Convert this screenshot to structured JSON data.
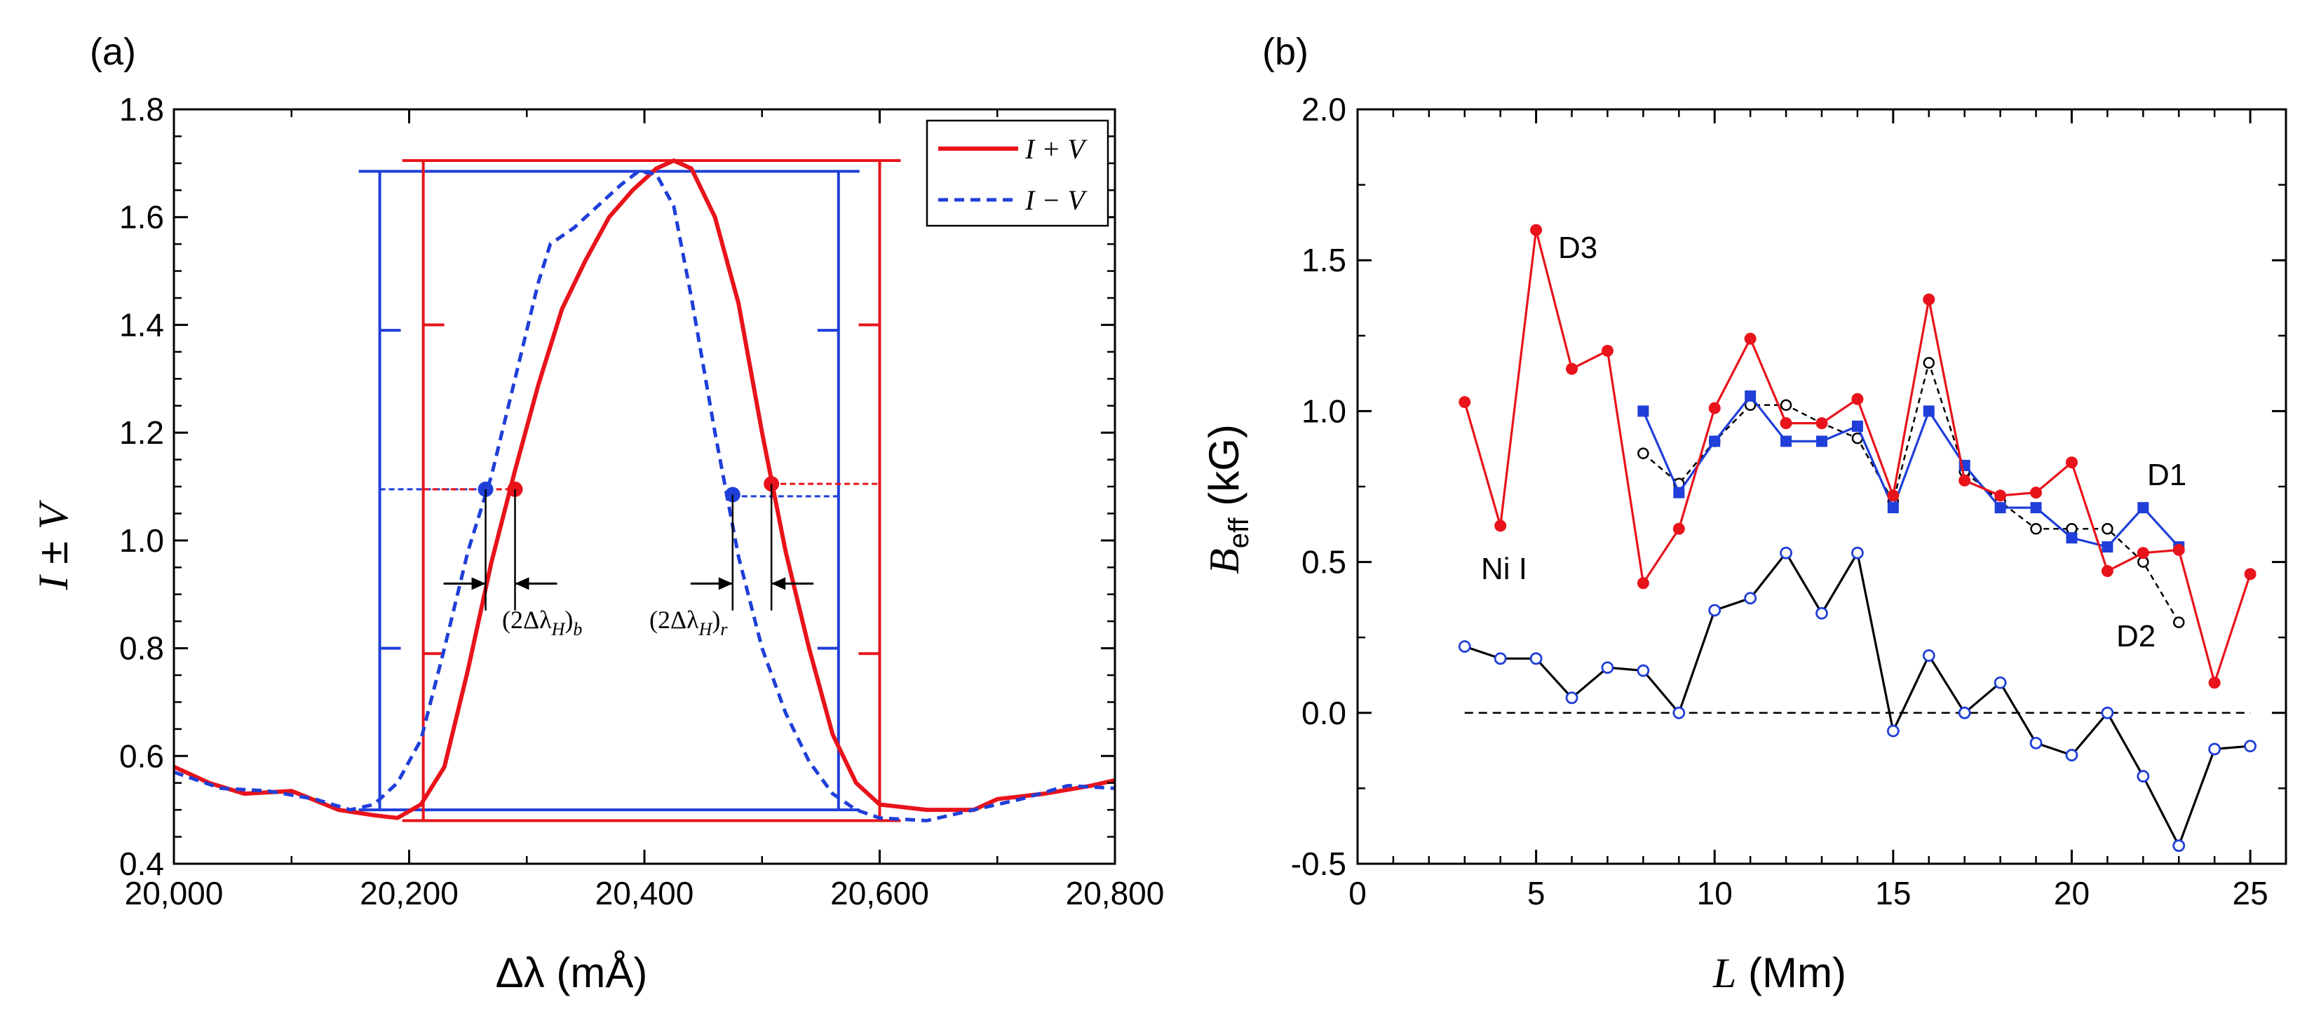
{
  "chart_data": [
    {
      "panel": "(a)",
      "type": "line",
      "xlabel": "Δλ (mÅ)",
      "ylabel": "I ± V",
      "xlim": [
        20000,
        20800
      ],
      "ylim": [
        0.4,
        1.8
      ],
      "xticks": [
        20000,
        20200,
        20400,
        20600,
        20800
      ],
      "xtick_labels": [
        "20,000",
        "20,200",
        "20,400",
        "20,600",
        "20,800"
      ],
      "yticks": [
        0.4,
        0.6,
        0.8,
        1.0,
        1.2,
        1.4,
        1.6,
        1.8
      ],
      "ytick_labels": [
        "0.4",
        "0.6",
        "0.8",
        "1.0",
        "1.2",
        "1.4",
        "1.6",
        "1.8"
      ],
      "legend": {
        "position": "top-right",
        "entries": [
          "I + V",
          "I − V"
        ]
      },
      "series": [
        {
          "name": "I + V",
          "color": "#e8131b",
          "style": "solid",
          "x": [
            20000,
            20030,
            20060,
            20100,
            20140,
            20170,
            20190,
            20210,
            20230,
            20250,
            20270,
            20290,
            20310,
            20330,
            20350,
            20370,
            20390,
            20410,
            20425,
            20440,
            20460,
            20480,
            20500,
            20520,
            20540,
            20560,
            20580,
            20600,
            20640,
            20680,
            20700,
            20740,
            20780,
            20800
          ],
          "values": [
            0.58,
            0.55,
            0.53,
            0.535,
            0.5,
            0.49,
            0.485,
            0.51,
            0.58,
            0.76,
            0.96,
            1.13,
            1.29,
            1.43,
            1.52,
            1.6,
            1.65,
            1.69,
            1.705,
            1.69,
            1.6,
            1.44,
            1.2,
            0.98,
            0.8,
            0.64,
            0.55,
            0.51,
            0.5,
            0.5,
            0.52,
            0.53,
            0.545,
            0.555
          ]
        },
        {
          "name": "I − V",
          "color": "#1f3fd8",
          "style": "dashed",
          "x": [
            20000,
            20040,
            20080,
            20120,
            20150,
            20170,
            20190,
            20210,
            20230,
            20250,
            20270,
            20290,
            20310,
            20320,
            20340,
            20360,
            20380,
            20395,
            20410,
            20425,
            20440,
            20460,
            20480,
            20500,
            20520,
            20540,
            20560,
            20580,
            20600,
            20640,
            20680,
            20720,
            20760,
            20800
          ],
          "values": [
            0.57,
            0.54,
            0.535,
            0.52,
            0.5,
            0.51,
            0.55,
            0.63,
            0.8,
            0.98,
            1.12,
            1.3,
            1.48,
            1.55,
            1.58,
            1.62,
            1.66,
            1.685,
            1.68,
            1.62,
            1.45,
            1.2,
            0.97,
            0.8,
            0.68,
            0.59,
            0.53,
            0.5,
            0.485,
            0.48,
            0.5,
            0.52,
            0.545,
            0.54
          ]
        }
      ],
      "markers": [
        {
          "x": 20265,
          "y": 1.095,
          "color": "#1f3fd8"
        },
        {
          "x": 20290,
          "y": 1.095,
          "color": "#e8131b"
        },
        {
          "x": 20475,
          "y": 1.085,
          "color": "#1f3fd8"
        },
        {
          "x": 20508,
          "y": 1.105,
          "color": "#e8131b"
        }
      ],
      "bars": {
        "blue": {
          "x_left": 20175,
          "x_right": 20565,
          "y_bottom": 0.5,
          "y_top": 1.685,
          "y_half": 1.095,
          "y_half_right": 1.082,
          "ticks": [
            0.8,
            1.39
          ],
          "color": "#1f3fd8"
        },
        "red": {
          "x_left": 20212,
          "x_right": 20600,
          "y_bottom": 0.48,
          "y_top": 1.705,
          "y_half": 1.095,
          "y_half_right": 1.105,
          "ticks": [
            0.79,
            1.4
          ],
          "color": "#e8131b"
        }
      },
      "annotations": [
        "(2Δλ_H)_b",
        "(2Δλ_H)_r"
      ]
    },
    {
      "panel": "(b)",
      "type": "line",
      "xlabel": "L (Mm)",
      "ylabel": "B_eff (kG)",
      "xlim": [
        0,
        26
      ],
      "ylim": [
        -0.5,
        2.0
      ],
      "xticks": [
        0,
        5,
        10,
        15,
        20,
        25
      ],
      "xtick_labels": [
        "0",
        "5",
        "10",
        "15",
        "20",
        "25"
      ],
      "yticks": [
        -0.5,
        0.0,
        0.5,
        1.0,
        1.5,
        2.0
      ],
      "ytick_labels": [
        "-0.5",
        "0.0",
        "0.5",
        "1.0",
        "1.5",
        "2.0"
      ],
      "zero_line": true,
      "series": [
        {
          "name": "D3",
          "color": "#e8131b",
          "marker": "filled-circle",
          "style": "solid",
          "x": [
            3,
            4,
            5,
            6,
            7,
            8,
            9,
            10,
            11,
            12,
            13,
            14,
            15,
            16,
            17,
            18,
            19,
            20,
            21,
            22,
            23,
            24,
            25
          ],
          "values": [
            1.03,
            0.62,
            1.6,
            1.14,
            1.2,
            0.43,
            0.61,
            1.01,
            1.24,
            0.96,
            0.96,
            1.04,
            0.72,
            1.37,
            0.77,
            0.72,
            0.73,
            0.83,
            0.47,
            0.53,
            0.54,
            0.1,
            0.46
          ]
        },
        {
          "name": "D1",
          "color": "#1f3fd8",
          "marker": "filled-square",
          "style": "solid",
          "x": [
            8,
            9,
            10,
            11,
            12,
            13,
            14,
            15,
            16,
            17,
            18,
            19,
            20,
            21,
            22,
            23
          ],
          "values": [
            1.0,
            0.73,
            0.9,
            1.05,
            0.9,
            0.9,
            0.95,
            0.68,
            1.0,
            0.82,
            0.68,
            0.68,
            0.58,
            0.55,
            0.68,
            0.55
          ]
        },
        {
          "name": "D2",
          "color": "#000000",
          "marker": "open-circle",
          "style": "dashed",
          "x": [
            8,
            9,
            10,
            11,
            12,
            13,
            14,
            15,
            16,
            17,
            18,
            19,
            20,
            21,
            22,
            23
          ],
          "values": [
            0.86,
            0.76,
            0.9,
            1.02,
            1.02,
            0.96,
            0.91,
            0.7,
            1.16,
            0.8,
            0.7,
            0.61,
            0.61,
            0.61,
            0.5,
            0.3
          ]
        },
        {
          "name": "Ni I",
          "color": "#000000",
          "marker": "open-circle-blue",
          "style": "solid",
          "x": [
            3,
            4,
            5,
            6,
            7,
            8,
            9,
            10,
            11,
            12,
            13,
            14,
            15,
            16,
            17,
            18,
            19,
            20,
            21,
            22,
            23,
            24,
            25
          ],
          "values": [
            0.22,
            0.18,
            0.18,
            0.05,
            0.15,
            0.14,
            0.0,
            0.34,
            0.38,
            0.53,
            0.33,
            0.53,
            -0.06,
            0.19,
            0.0,
            0.1,
            -0.1,
            -0.14,
            0.0,
            -0.21,
            -0.44,
            -0.12,
            -0.11
          ]
        }
      ],
      "annotations": [
        "D3",
        "D1",
        "D2",
        "Ni I"
      ]
    }
  ],
  "panel_labels": [
    "(a)",
    "(b)"
  ],
  "labels": {
    "a_xlabel": "Δλ (mÅ)",
    "a_ylabel_I": "I",
    "a_ylabel_pm": " ± ",
    "a_ylabel_V": "V",
    "legend_1": "I + V",
    "legend_2": "I − V",
    "annot_b": "(2Δλ",
    "annot_b_sub1": "H",
    "annot_b_close": ")",
    "annot_b_sub2": "b",
    "annot_r": "(2Δλ",
    "annot_r_sub1": "H",
    "annot_r_close": ")",
    "annot_r_sub2": "r",
    "b_xlabel_L": "L",
    "b_xlabel_rest": " (Mm)",
    "b_ylabel_B": "B",
    "b_ylabel_sub": "eff",
    "b_ylabel_rest": " (kG)",
    "d3": "D3",
    "d1": "D1",
    "d2": "D2",
    "nii": "Ni I"
  }
}
